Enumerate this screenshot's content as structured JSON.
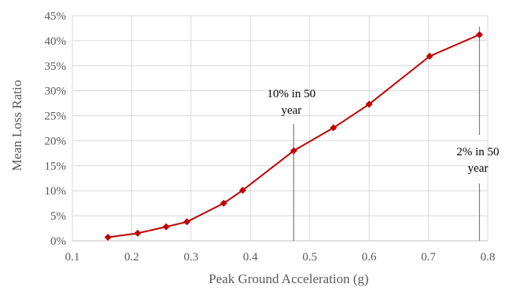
{
  "chart_data": {
    "type": "line",
    "title": "",
    "xlabel": "Peak Ground Acceleration  (g)",
    "ylabel": "Mean Loss Ratio",
    "xlim": [
      0.1,
      0.8
    ],
    "ylim": [
      0,
      45
    ],
    "x_ticks": [
      "0.1",
      "0.2",
      "0.3",
      "0.4",
      "0.5",
      "0.6",
      "0.7",
      "0.8"
    ],
    "y_ticks": [
      "0%",
      "5%",
      "10%",
      "15%",
      "20%",
      "25%",
      "30%",
      "35%",
      "40%",
      "45%"
    ],
    "grid": true,
    "legend": "none",
    "series": [
      {
        "color": "#c00000",
        "marker": "diamond",
        "x": [
          0.16,
          0.21,
          0.258,
          0.293,
          0.355,
          0.387,
          0.473,
          0.54,
          0.6,
          0.702,
          0.786
        ],
        "y": [
          0.7,
          1.5,
          2.8,
          3.8,
          7.5,
          10.1,
          18.0,
          22.6,
          27.3,
          36.9,
          41.2
        ]
      }
    ],
    "annotations": [
      {
        "x": 0.473,
        "lines": [
          "10% in 50",
          "year"
        ]
      },
      {
        "x": 0.786,
        "lines": [
          "2% in 50",
          "year"
        ]
      }
    ]
  }
}
